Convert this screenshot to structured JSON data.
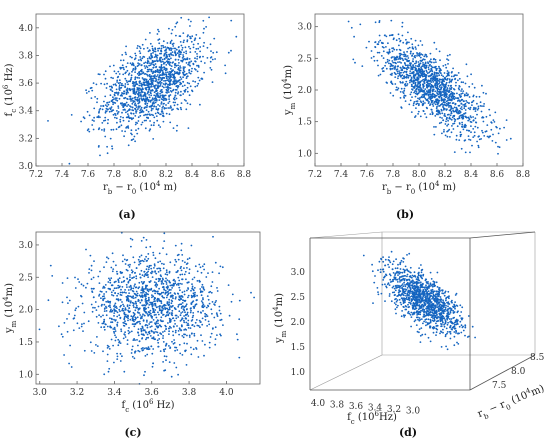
{
  "point_color": "#1565c0",
  "chart_data": [
    {
      "type": "scatter",
      "panel": "(a)",
      "xlabel": "r_b − r_0 (10^4 m)",
      "ylabel": "f_c (10^6 Hz)",
      "xlim": [
        7.2,
        8.8
      ],
      "ylim": [
        3.0,
        4.1
      ],
      "xticks": [
        "7.2",
        "7.4",
        "7.6",
        "7.8",
        "8.0",
        "8.2",
        "8.4",
        "8.6",
        "8.8"
      ],
      "yticks": [
        "3.0",
        "3.2",
        "3.4",
        "3.6",
        "3.8",
        "4.0"
      ],
      "n_points": 1400,
      "mean": [
        8.1,
        3.6
      ],
      "std": [
        0.2,
        0.17
      ],
      "corr": 0.5
    },
    {
      "type": "scatter",
      "panel": "(b)",
      "xlabel": "r_b − r_0 (10^4 m)",
      "ylabel": "y_m (10^4m)",
      "xlim": [
        7.2,
        8.8
      ],
      "ylim": [
        0.8,
        3.2
      ],
      "xticks": [
        "7.2",
        "7.4",
        "7.6",
        "7.8",
        "8.0",
        "8.2",
        "8.4",
        "8.6",
        "8.8"
      ],
      "yticks": [
        "1.0",
        "1.5",
        "2.0",
        "2.5",
        "3.0"
      ],
      "n_points": 1400,
      "mean": [
        8.1,
        2.05
      ],
      "std": [
        0.2,
        0.38
      ],
      "corr": -0.75
    },
    {
      "type": "scatter",
      "panel": "(c)",
      "xlabel": "f_c (10^6 Hz)",
      "ylabel": "y_m (10^4m)",
      "xlim": [
        2.98,
        4.18
      ],
      "ylim": [
        0.85,
        3.2
      ],
      "xticks": [
        "3.0",
        "3.2",
        "3.4",
        "3.6",
        "3.8",
        "4.0"
      ],
      "yticks": [
        "1.0",
        "1.5",
        "2.0",
        "2.5",
        "3.0"
      ],
      "n_points": 1400,
      "mean": [
        3.6,
        2.05
      ],
      "std": [
        0.18,
        0.38
      ],
      "corr": 0.0
    },
    {
      "type": "scatter3d",
      "panel": "(d)",
      "xlabel": "r_b − r_0 (10^4m)",
      "ylabel": "f_c (10^6Hz)",
      "zlabel": "y_m (10^4m)",
      "xticks": [
        "7.5",
        "8.0",
        "8.5"
      ],
      "yticks": [
        "4.0",
        "3.8",
        "3.6",
        "3.4",
        "3.2",
        "3.0"
      ],
      "zticks": [
        "1.0",
        "1.5",
        "2.0",
        "2.5",
        "3.0"
      ],
      "n_points": 1200,
      "mean": [
        8.1,
        3.6,
        2.05
      ],
      "std": [
        0.2,
        0.17,
        0.38
      ]
    }
  ],
  "labels": {
    "a": "(a)",
    "b": "(b)",
    "c": "(c)",
    "d": "(d)"
  }
}
